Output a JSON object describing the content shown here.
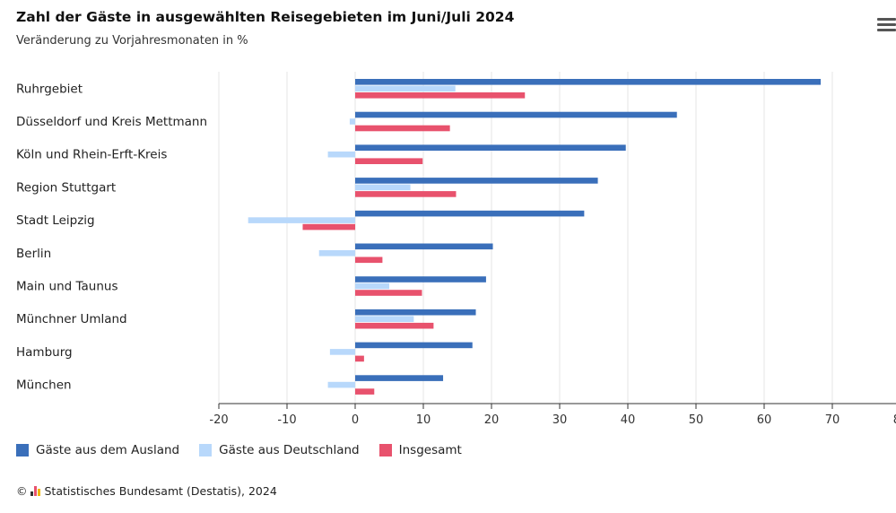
{
  "header": {
    "title": "Zahl der Gäste in ausgewählten Reisegebieten im Juni/Juli 2024",
    "subtitle": "Veränderung zu Vorjahresmonaten in %"
  },
  "footer": {
    "copyright_symbol": "©",
    "credit": "Statistisches Bundesamt (Destatis), 2024"
  },
  "icons": {
    "menu": "hamburger-menu-icon",
    "logo": "destatis-logo-icon"
  },
  "chart_data": {
    "type": "bar",
    "orientation": "horizontal",
    "title": "Zahl der Gäste in ausgewählten Reisegebieten im Juni/Juli 2024",
    "subtitle": "Veränderung zu Vorjahresmonaten in %",
    "categories": [
      "Ruhrgebiet",
      "Düsseldorf und Kreis Mettmann",
      "Köln und Rhein-Erft-Kreis",
      "Region Stuttgart",
      "Stadt Leipzig",
      "Berlin",
      "Main und Taunus",
      "Münchner Umland",
      "Hamburg",
      "München"
    ],
    "series": [
      {
        "name": "Gäste aus dem Ausland",
        "color": "#3a6fba",
        "values": [
          68.3,
          47.2,
          39.7,
          35.6,
          33.6,
          20.2,
          19.2,
          17.7,
          17.2,
          12.9
        ]
      },
      {
        "name": "Gäste aus Deutschland",
        "color": "#b8d8fb",
        "values": [
          14.7,
          -0.8,
          -4.0,
          8.1,
          -15.7,
          -5.3,
          5.0,
          8.6,
          -3.7,
          -4.0
        ]
      },
      {
        "name": "Insgesamt",
        "color": "#e8526d",
        "values": [
          24.9,
          13.9,
          9.9,
          14.8,
          -7.7,
          4.0,
          9.8,
          11.5,
          1.3,
          2.8
        ]
      }
    ],
    "xlim": [
      -20,
      80
    ],
    "xticks": [
      -20,
      -10,
      0,
      10,
      20,
      30,
      40,
      50,
      60,
      70,
      80
    ],
    "grid": true,
    "legend_position": "bottom-left"
  }
}
